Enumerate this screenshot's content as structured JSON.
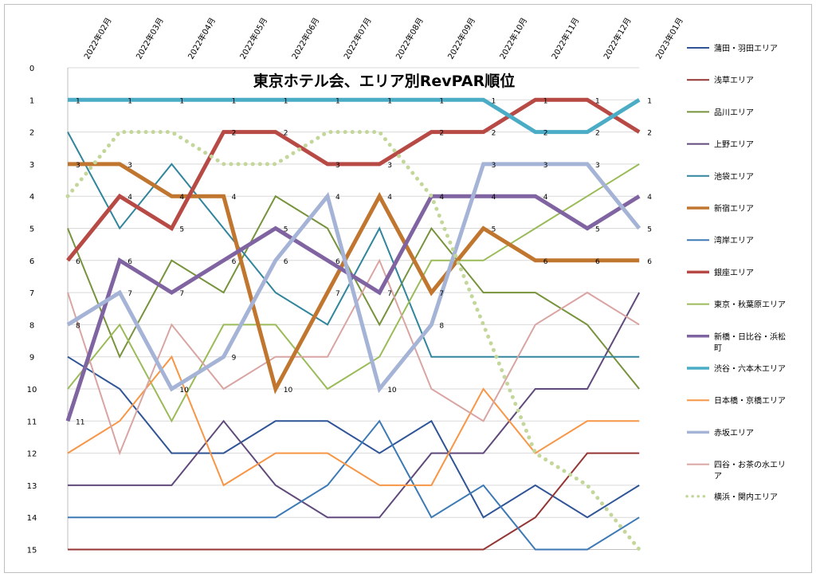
{
  "chart_data": {
    "type": "line",
    "title": "東京ホテル会、エリア別RevPAR順位",
    "xlabel": "",
    "ylabel": "",
    "ylim": [
      0,
      15
    ],
    "y_inverted": true,
    "y_ticks": [
      "0",
      "1",
      "2",
      "3",
      "4",
      "5",
      "6",
      "7",
      "8",
      "9",
      "10",
      "11",
      "12",
      "13",
      "14",
      "15"
    ],
    "categories": [
      "2022年02月",
      "2022年03月",
      "2022年04月",
      "2022年05月",
      "2022年06月",
      "2022年07月",
      "2022年08月",
      "2022年09月",
      "2022年10月",
      "2022年11月",
      "2022年12月",
      "2023年01月"
    ],
    "grid": "horizontal",
    "legend_position": "right",
    "series": [
      {
        "name": "蒲田・羽田エリア",
        "color": "#2f5597",
        "width": 2,
        "values": [
          9,
          10,
          12,
          12,
          11,
          11,
          12,
          11,
          14,
          13,
          14,
          13
        ]
      },
      {
        "name": "浅草エリア",
        "color": "#943634",
        "width": 2,
        "values": [
          15,
          15,
          15,
          15,
          15,
          15,
          15,
          15,
          15,
          14,
          12,
          12
        ]
      },
      {
        "name": "品川エリア",
        "color": "#77933c",
        "width": 2,
        "values": [
          5,
          9,
          6,
          7,
          4,
          5,
          8,
          5,
          7,
          7,
          8,
          10
        ]
      },
      {
        "name": "上野エリア",
        "color": "#604a7b",
        "width": 2,
        "values": [
          13,
          13,
          13,
          11,
          13,
          14,
          14,
          12,
          12,
          10,
          10,
          7
        ]
      },
      {
        "name": "池袋エリア",
        "color": "#31859c",
        "width": 2,
        "values": [
          2,
          5,
          3,
          5,
          7,
          8,
          5,
          9,
          9,
          9,
          9,
          9
        ]
      },
      {
        "name": "新宿エリア",
        "color": "#c0762f",
        "width": 5,
        "labeled": true,
        "values": [
          3,
          3,
          4,
          4,
          10,
          7,
          4,
          7,
          5,
          6,
          6,
          6
        ]
      },
      {
        "name": "湾岸エリア",
        "color": "#3d7ab5",
        "width": 2,
        "values": [
          14,
          14,
          14,
          14,
          14,
          13,
          11,
          14,
          13,
          15,
          15,
          14
        ]
      },
      {
        "name": "銀座エリア",
        "color": "#b84a45",
        "width": 5,
        "labeled": true,
        "values": [
          6,
          4,
          5,
          2,
          2,
          3,
          3,
          2,
          2,
          1,
          1,
          2
        ]
      },
      {
        "name": "東京・秋葉原エリア",
        "color": "#9bbb59",
        "width": 2,
        "values": [
          10,
          8,
          11,
          8,
          8,
          10,
          9,
          6,
          6,
          5,
          4,
          3
        ]
      },
      {
        "name": "新橋・日比谷・浜松町",
        "color": "#8064a2",
        "width": 5,
        "labeled": true,
        "values": [
          11,
          6,
          7,
          6,
          5,
          6,
          7,
          4,
          4,
          4,
          5,
          4
        ]
      },
      {
        "name": "渋谷・六本木エリア",
        "color": "#4bacc6",
        "width": 5,
        "labeled": true,
        "values": [
          1,
          1,
          1,
          1,
          1,
          1,
          1,
          1,
          1,
          2,
          2,
          1
        ]
      },
      {
        "name": "日本橋・京橋エリア",
        "color": "#f79646",
        "width": 2,
        "values": [
          12,
          11,
          9,
          13,
          12,
          12,
          13,
          13,
          10,
          12,
          11,
          11
        ]
      },
      {
        "name": "赤坂エリア",
        "color": "#a5b4d6",
        "width": 5,
        "labeled": true,
        "values": [
          8,
          7,
          10,
          9,
          6,
          4,
          10,
          8,
          3,
          3,
          3,
          5
        ]
      },
      {
        "name": "四谷・お茶の水エリア",
        "color": "#d9a5a3",
        "width": 2,
        "values": [
          7,
          12,
          8,
          10,
          9,
          9,
          6,
          10,
          11,
          8,
          7,
          8
        ]
      },
      {
        "name": "横浜・関内エリア",
        "color": "#c4d79b",
        "width": 5,
        "dotted": true,
        "values": [
          4,
          2,
          2,
          3,
          3,
          2,
          2,
          4,
          8,
          12,
          13,
          15
        ]
      }
    ]
  }
}
